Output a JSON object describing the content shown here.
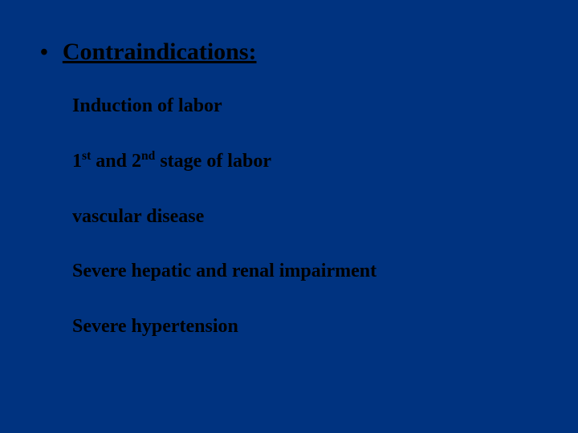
{
  "slide": {
    "background_color": "#003380",
    "text_color": "#000000",
    "font_family": "Times New Roman",
    "bullet_char": "•",
    "heading": "Contraindications:",
    "heading_fontsize": 30,
    "item_fontsize": 24,
    "items": [
      {
        "html": "Induction of labor"
      },
      {
        "html": "1<sup>st</sup> and 2<sup>nd</sup> stage of labor"
      },
      {
        "html": "vascular disease"
      },
      {
        "html": "Severe hepatic and renal impairment"
      },
      {
        "html": "Severe hypertension"
      }
    ]
  }
}
